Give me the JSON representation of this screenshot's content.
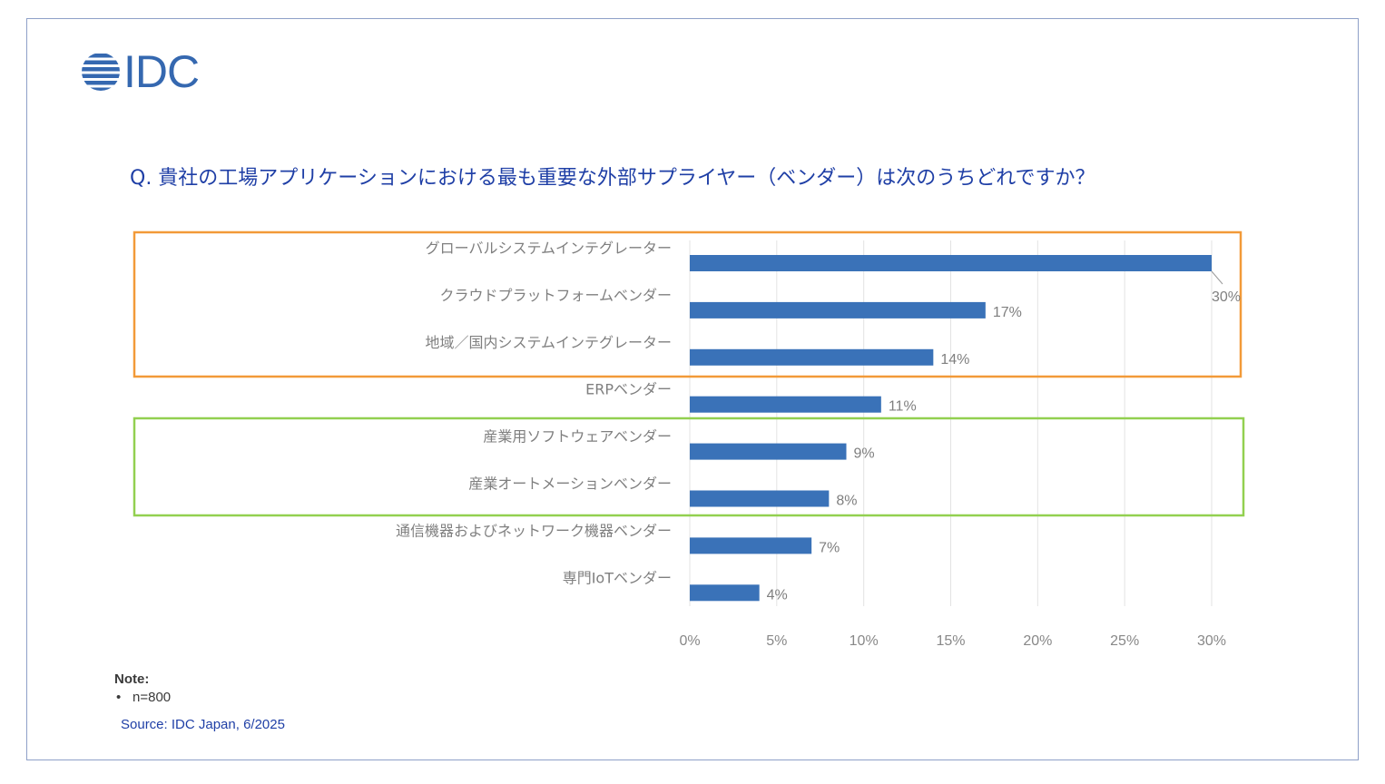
{
  "logo": {
    "text": "IDC"
  },
  "question": "Q. 貴社の工場アプリケーションにおける最も重要な外部サプライヤー（ベンダー）は次のうちどれですか？",
  "note": {
    "title": "Note:",
    "items": [
      "n=800"
    ]
  },
  "source": "Source: IDC Japan, 6/2025",
  "colors": {
    "bar": "#3a72b8",
    "orange_box": "#f29a38",
    "green_box": "#92d050",
    "text": "#1f3fa6",
    "grid": "#e3e3e3"
  },
  "chart_data": {
    "type": "bar",
    "orientation": "horizontal",
    "categories": [
      "グローバルシステムインテグレーター",
      "クラウドプラットフォームベンダー",
      "地域／国内システムインテグレーター",
      "ERPベンダー",
      "産業用ソフトウェアベンダー",
      "産業オートメーションベンダー",
      "通信機器およびネットワーク機器ベンダー",
      "専門IoTベンダー"
    ],
    "values": [
      30,
      17,
      14,
      11,
      9,
      8,
      7,
      4
    ],
    "data_labels": [
      "30%",
      "17%",
      "14%",
      "11%",
      "9%",
      "8%",
      "7%",
      "4%"
    ],
    "xlim": [
      0,
      30
    ],
    "x_ticks": [
      "0%",
      "5%",
      "10%",
      "15%",
      "20%",
      "25%",
      "30%"
    ],
    "grid": true,
    "highlight_groups": [
      {
        "color": "orange",
        "categories": [
          0,
          1,
          2
        ]
      },
      {
        "color": "green",
        "categories": [
          4,
          5
        ]
      }
    ]
  }
}
